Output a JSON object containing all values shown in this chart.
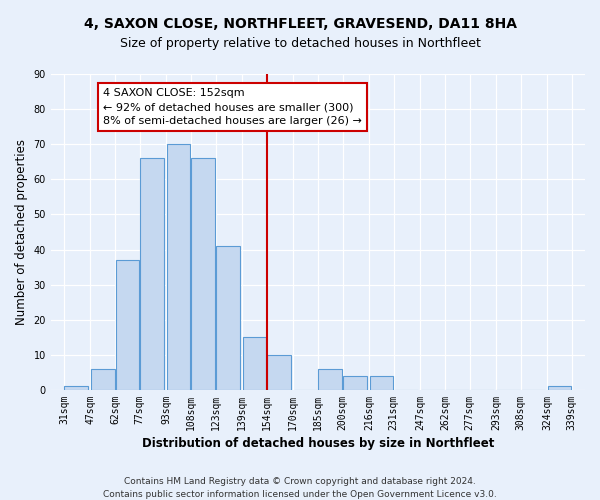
{
  "title": "4, SAXON CLOSE, NORTHFLEET, GRAVESEND, DA11 8HA",
  "subtitle": "Size of property relative to detached houses in Northfleet",
  "xlabel": "Distribution of detached houses by size in Northfleet",
  "ylabel": "Number of detached properties",
  "bar_left_edges": [
    31,
    47,
    62,
    77,
    93,
    108,
    123,
    139,
    154,
    170,
    185,
    200,
    216,
    231,
    247,
    262,
    277,
    293,
    308,
    324
  ],
  "bar_heights": [
    1,
    6,
    37,
    66,
    70,
    66,
    41,
    15,
    10,
    0,
    6,
    4,
    4,
    0,
    0,
    0,
    0,
    0,
    0,
    1
  ],
  "bin_width": 15,
  "bar_color": "#c5d8f0",
  "bar_edge_color": "#5b9bd5",
  "vline_x": 154,
  "vline_color": "#cc0000",
  "annotation_title": "4 SAXON CLOSE: 152sqm",
  "annotation_line1": "← 92% of detached houses are smaller (300)",
  "annotation_line2": "8% of semi-detached houses are larger (26) →",
  "annotation_box_color": "#ffffff",
  "annotation_box_edge": "#cc0000",
  "tick_labels": [
    "31sqm",
    "47sqm",
    "62sqm",
    "77sqm",
    "93sqm",
    "108sqm",
    "123sqm",
    "139sqm",
    "154sqm",
    "170sqm",
    "185sqm",
    "200sqm",
    "216sqm",
    "231sqm",
    "247sqm",
    "262sqm",
    "277sqm",
    "293sqm",
    "308sqm",
    "324sqm",
    "339sqm"
  ],
  "tick_positions": [
    31,
    47,
    62,
    77,
    93,
    108,
    123,
    139,
    154,
    170,
    185,
    200,
    216,
    231,
    247,
    262,
    277,
    293,
    308,
    324,
    339
  ],
  "ylim": [
    0,
    90
  ],
  "xlim": [
    23,
    347
  ],
  "footer1": "Contains HM Land Registry data © Crown copyright and database right 2024.",
  "footer2": "Contains public sector information licensed under the Open Government Licence v3.0.",
  "bg_color": "#e8f0fb",
  "plot_bg_color": "#e8f0fb",
  "grid_color": "#ffffff",
  "title_fontsize": 10,
  "subtitle_fontsize": 9,
  "axis_label_fontsize": 8.5,
  "tick_fontsize": 7,
  "footer_fontsize": 6.5,
  "annotation_fontsize": 8
}
